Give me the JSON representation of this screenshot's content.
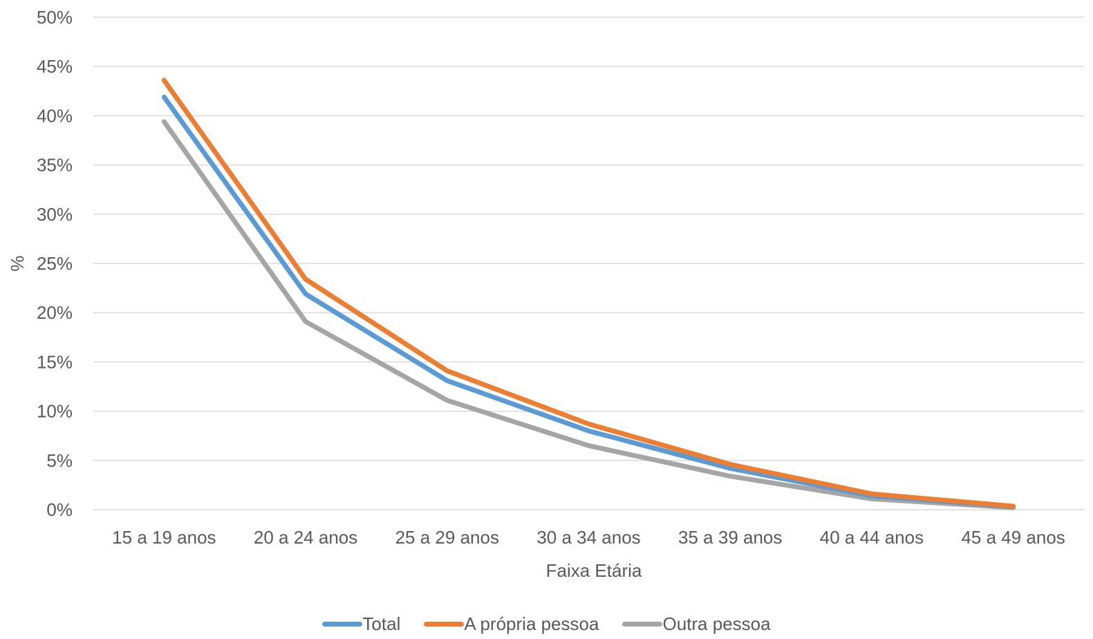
{
  "chart_data": {
    "type": "line",
    "title": "",
    "xlabel": "Faixa Etária",
    "ylabel": "%",
    "ylim": [
      0,
      50
    ],
    "y_ticks": [
      "0%",
      "5%",
      "10%",
      "15%",
      "20%",
      "25%",
      "30%",
      "35%",
      "40%",
      "45%",
      "50%"
    ],
    "categories": [
      "15 a 19 anos",
      "20 a 24 anos",
      "25 a 29 anos",
      "30 a 34 anos",
      "35 a 39 anos",
      "40 a 44 anos",
      "45 a 49 anos"
    ],
    "series": [
      {
        "name": "Total",
        "color": "#5B9BD5",
        "values": [
          41.9,
          21.9,
          13.1,
          8.0,
          4.2,
          1.4,
          0.3
        ]
      },
      {
        "name": "A própria pessoa",
        "color": "#ED7D31",
        "values": [
          43.6,
          23.4,
          14.1,
          8.7,
          4.6,
          1.6,
          0.35
        ]
      },
      {
        "name": "Outra pessoa",
        "color": "#A5A5A5",
        "values": [
          39.4,
          19.1,
          11.1,
          6.5,
          3.4,
          1.1,
          0.2
        ]
      }
    ],
    "grid": true,
    "legend_position": "bottom"
  }
}
